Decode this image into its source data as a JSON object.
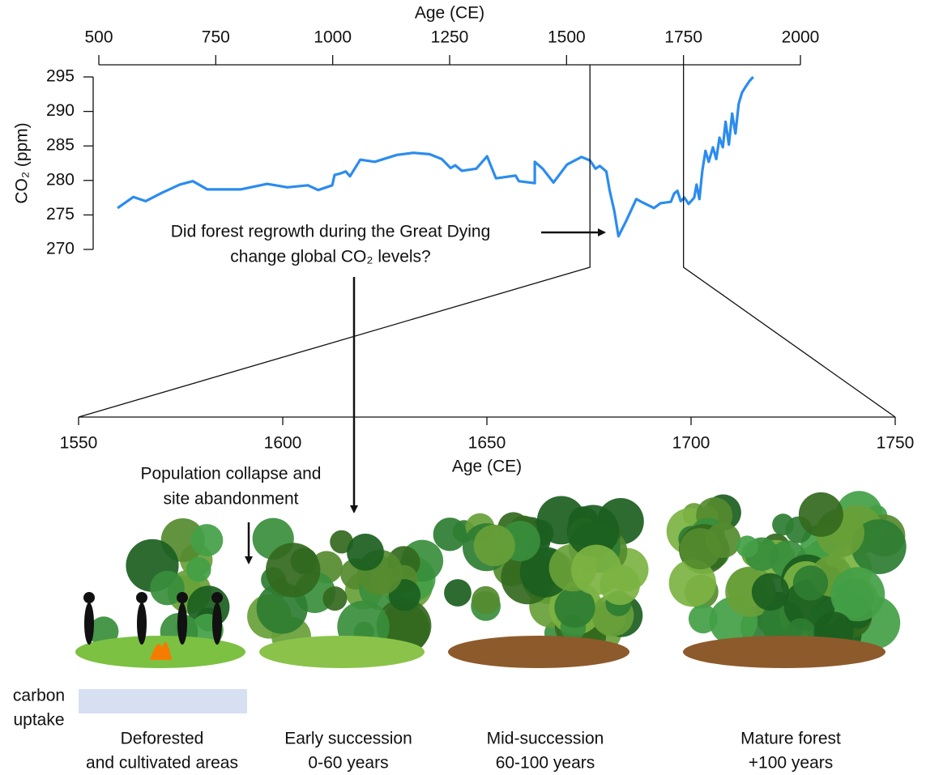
{
  "chart_data": [
    {
      "type": "line",
      "xlabel": "Age (CE)",
      "ylabel": "CO₂ (ppm)",
      "color": "#2b8cef",
      "x": [
        540,
        574,
        600,
        635,
        673,
        701,
        732,
        803,
        860,
        903,
        947,
        969,
        999,
        1004,
        1016,
        1028,
        1037,
        1059,
        1090,
        1137,
        1172,
        1207,
        1233,
        1252,
        1262,
        1276,
        1307,
        1330,
        1349,
        1391,
        1398,
        1432,
        1432,
        1449,
        1472,
        1501,
        1532,
        1550,
        1562,
        1571,
        1585,
        1592,
        1602,
        1611,
        1628,
        1649,
        1663,
        1687,
        1701,
        1723,
        1730,
        1737,
        1744,
        1752,
        1761,
        1773,
        1778,
        1784,
        1790,
        1797,
        1804,
        1813,
        1820,
        1827,
        1834,
        1840,
        1847,
        1854,
        1861,
        1868,
        1875,
        1882,
        1891,
        1899
      ],
      "values": [
        276.0,
        277.6,
        277.0,
        278.2,
        279.4,
        279.9,
        278.7,
        278.7,
        279.5,
        279.0,
        279.3,
        278.6,
        279.3,
        280.8,
        281.0,
        281.3,
        280.6,
        283.0,
        282.7,
        283.7,
        284.0,
        283.8,
        283.1,
        281.8,
        282.2,
        281.4,
        281.7,
        283.5,
        280.3,
        280.7,
        279.9,
        279.6,
        282.7,
        281.7,
        279.7,
        282.3,
        283.4,
        282.9,
        281.7,
        282.1,
        281.3,
        278.6,
        275.6,
        271.9,
        274.2,
        277.3,
        276.8,
        276.0,
        276.7,
        276.9,
        278.1,
        278.5,
        277.0,
        277.5,
        276.6,
        277.5,
        279.4,
        277.3,
        281.3,
        284.3,
        282.7,
        284.8,
        283.1,
        286.2,
        284.8,
        288.5,
        285.2,
        289.7,
        286.8,
        291.1,
        292.7,
        293.5,
        294.4,
        295.0
      ],
      "xlim": [
        500,
        2000
      ],
      "xticks": [
        500,
        750,
        1000,
        1250,
        1500,
        1750,
        2000
      ],
      "ylim": [
        270,
        295
      ],
      "yticks": [
        270,
        275,
        280,
        285,
        290,
        295
      ]
    },
    {
      "type": "axis",
      "xlabel": "Age (CE)",
      "xlim": [
        1550,
        1750
      ],
      "xticks": [
        1550,
        1600,
        1650,
        1700,
        1750
      ]
    }
  ],
  "annotations": {
    "question": [
      "Did forest regrowth during the Great Dying",
      "change global CO₂ levels?"
    ],
    "collapse": [
      "Population collapse and",
      "site abandonment"
    ]
  },
  "carbon_label": [
    "carbon",
    "uptake"
  ],
  "stages": [
    {
      "name": "Deforested",
      "detail": "and cultivated areas"
    },
    {
      "name": "Early succession",
      "detail": "0-60 years"
    },
    {
      "name": "Mid-succession",
      "detail": "60-100 years"
    },
    {
      "name": "Mature forest",
      "detail": "+100 years"
    }
  ]
}
